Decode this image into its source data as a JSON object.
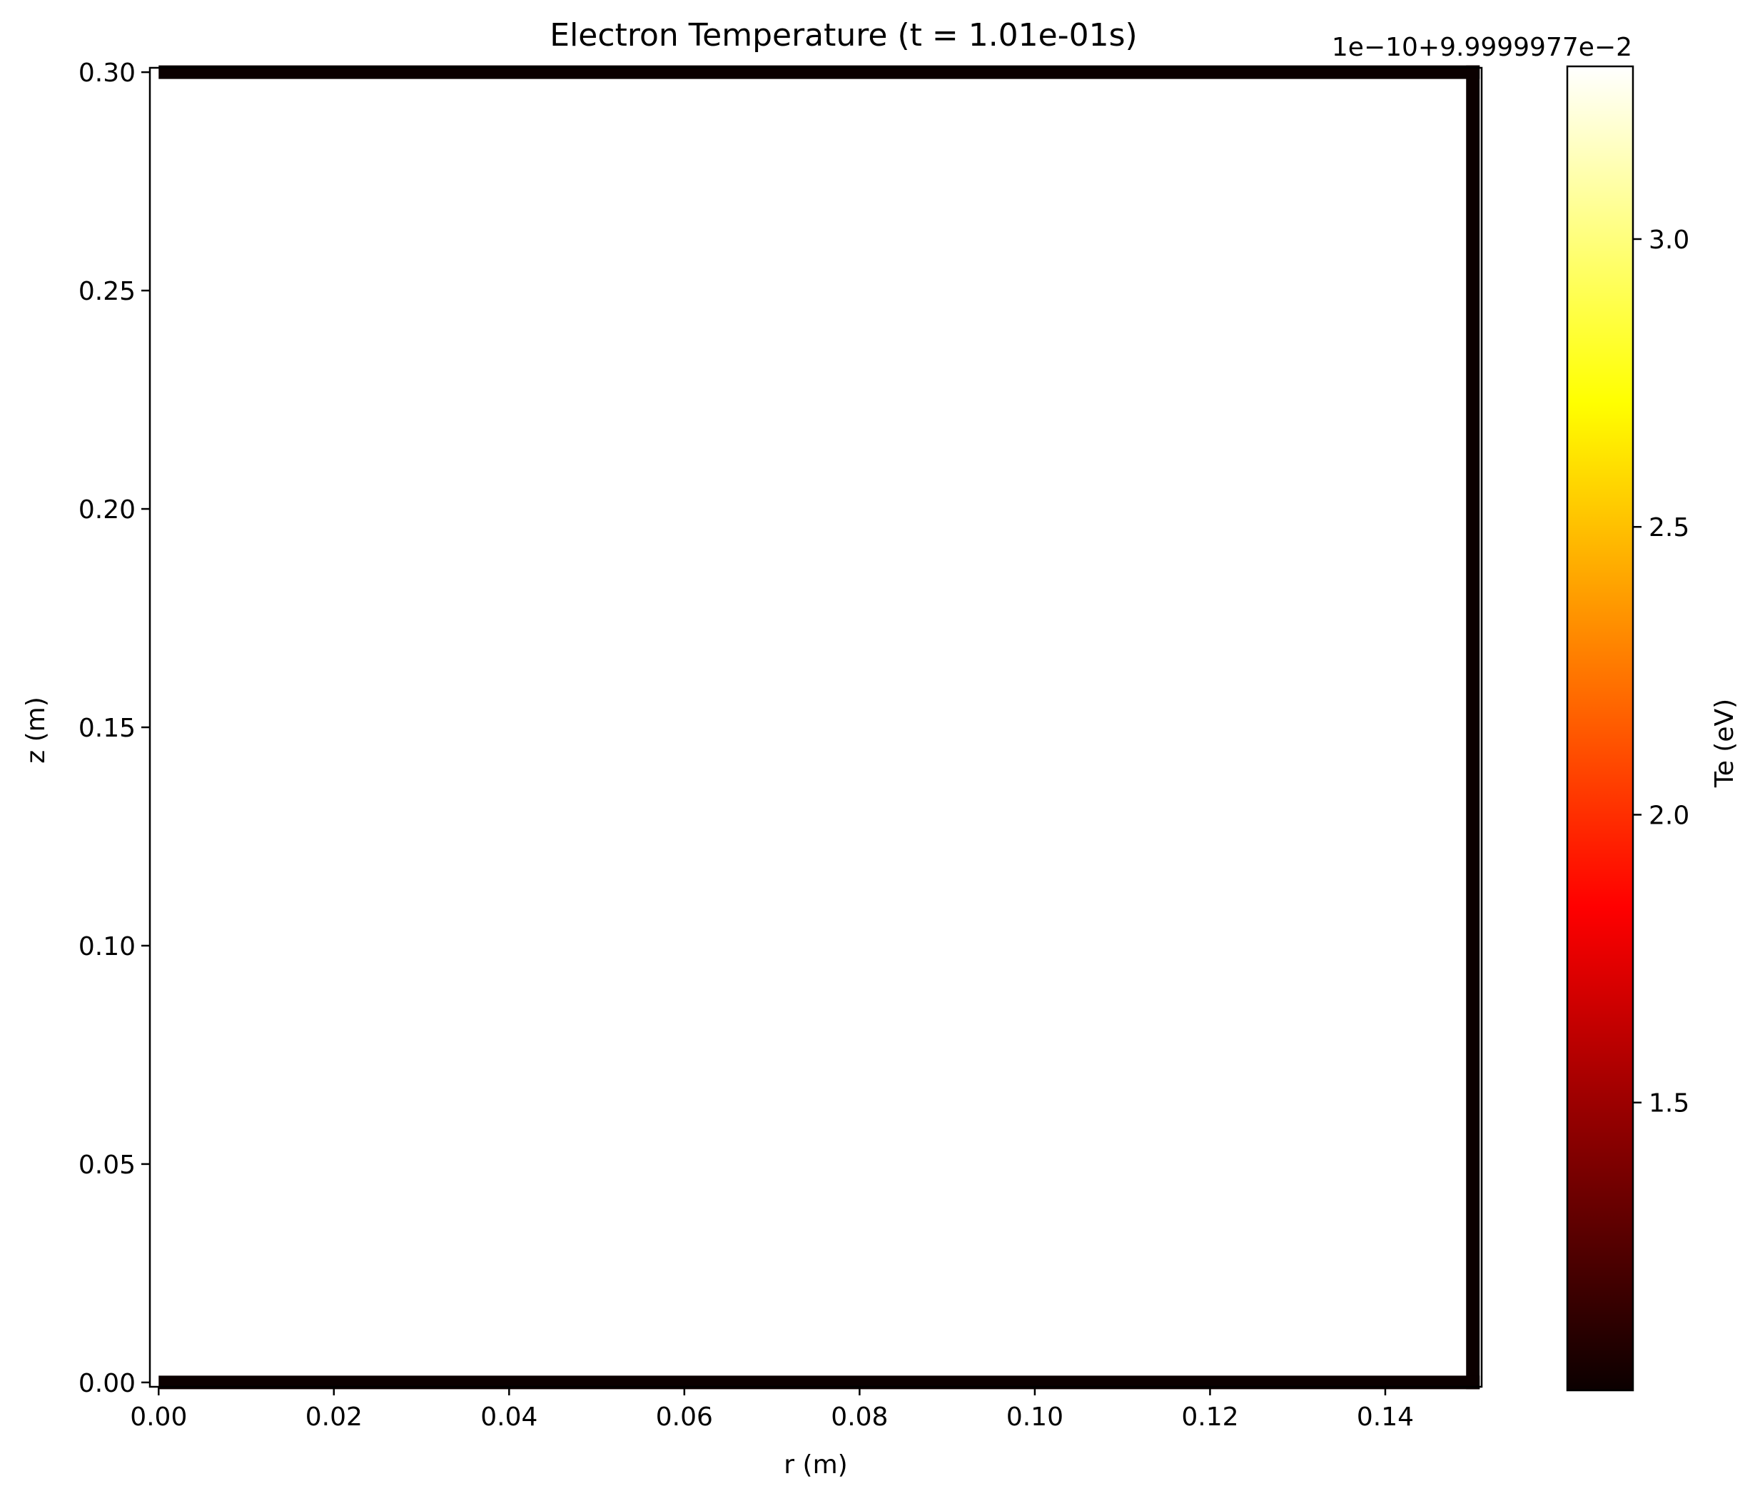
{
  "chart_data": {
    "type": "heatmap",
    "title": "Electron Temperature (t = 1.01e-01s)",
    "xlabel": "r (m)",
    "ylabel": "z (m)",
    "xlim": [
      -0.001,
      0.151
    ],
    "ylim": [
      -0.001,
      0.301
    ],
    "x_ticks": [
      0.0,
      0.02,
      0.04,
      0.06,
      0.08,
      0.1,
      0.12,
      0.14
    ],
    "x_tick_labels": [
      "0.00",
      "0.02",
      "0.04",
      "0.06",
      "0.08",
      "0.10",
      "0.12",
      "0.14"
    ],
    "y_ticks": [
      0.0,
      0.05,
      0.1,
      0.15,
      0.2,
      0.25,
      0.3
    ],
    "y_tick_labels": [
      "0.00",
      "0.05",
      "0.10",
      "0.15",
      "0.20",
      "0.25",
      "0.30"
    ],
    "field": {
      "interior_value_scaled": 3.3,
      "boundary_value_scaled": 1.0,
      "boundary_edges": [
        "top",
        "right",
        "bottom"
      ],
      "domain_r": [
        0.0,
        0.15
      ],
      "domain_z": [
        0.0,
        0.3
      ]
    },
    "colorbar": {
      "label": "Te (eV)",
      "colormap": "hot",
      "offset_text": "1e−10+9.9999977e−2",
      "range_scaled": [
        1.0,
        3.3
      ],
      "ticks": [
        1.5,
        2.0,
        2.5,
        3.0
      ],
      "tick_labels": [
        "1.5",
        "2.0",
        "2.5",
        "3.0"
      ],
      "gradient_stops": [
        {
          "t": 0.0,
          "color": "#0b0000"
        },
        {
          "t": 0.3651,
          "color": "#ff0000"
        },
        {
          "t": 0.746,
          "color": "#ffff00"
        },
        {
          "t": 1.0,
          "color": "#ffffff"
        }
      ]
    },
    "grid": false,
    "legend": "none"
  }
}
